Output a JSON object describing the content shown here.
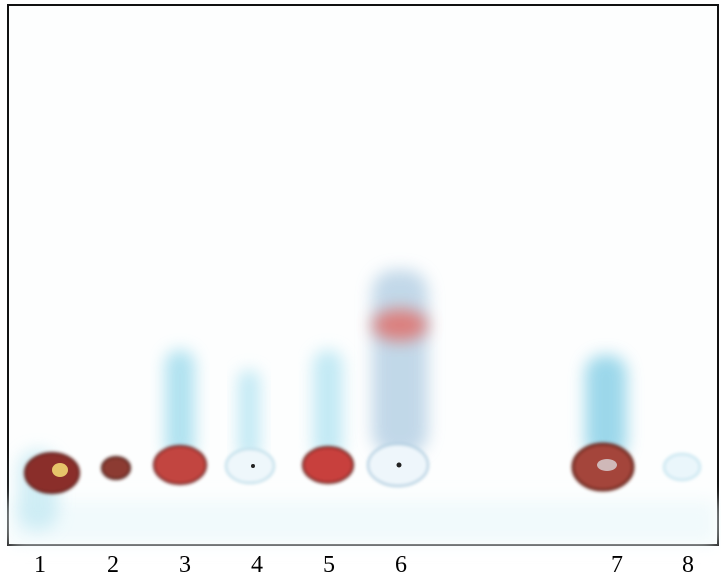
{
  "lanes": [
    {
      "label": "1"
    },
    {
      "label": "2"
    },
    {
      "label": "3"
    },
    {
      "label": "4"
    },
    {
      "label": "5"
    },
    {
      "label": "6"
    },
    {
      "label": "7"
    },
    {
      "label": "8"
    }
  ]
}
